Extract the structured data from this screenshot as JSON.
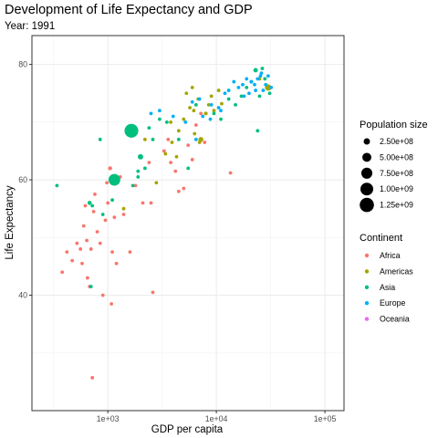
{
  "chart_data": {
    "type": "scatter",
    "title": "Development of Life Expectancy and GDP",
    "subtitle": "Year: 1991",
    "xlabel": "GDP per capita",
    "ylabel": "Life Expectancy",
    "x_scale": "log10",
    "xlim": [
      200,
      150000
    ],
    "ylim": [
      20,
      85
    ],
    "x_ticks": [
      {
        "value": 1000,
        "label": "1e+03"
      },
      {
        "value": 10000,
        "label": "1e+04"
      },
      {
        "value": 100000,
        "label": "1e+05"
      }
    ],
    "y_ticks": [
      {
        "value": 40,
        "label": "40"
      },
      {
        "value": 60,
        "label": "60"
      },
      {
        "value": 80,
        "label": "80"
      }
    ],
    "grid": true,
    "legend_position": "right",
    "size_legend": {
      "title": "Population size",
      "entries": [
        {
          "value": 250000000,
          "label": "2.50e+08"
        },
        {
          "value": 500000000,
          "label": "5.00e+08"
        },
        {
          "value": 750000000,
          "label": "7.50e+08"
        },
        {
          "value": 1000000000,
          "label": "1.00e+09"
        },
        {
          "value": 1250000000,
          "label": "1.25e+09"
        }
      ]
    },
    "color_legend": {
      "title": "Continent",
      "entries": [
        {
          "name": "Africa",
          "color": "#F8766D"
        },
        {
          "name": "Americas",
          "color": "#A3A500"
        },
        {
          "name": "Asia",
          "color": "#00BF7D"
        },
        {
          "name": "Europe",
          "color": "#00B0F6"
        },
        {
          "name": "Oceania",
          "color": "#E76BF3"
        }
      ]
    },
    "series": [
      {
        "name": "Africa",
        "color": "#F8766D",
        "points": [
          [
            380,
            44.0
          ],
          [
            420,
            47.5
          ],
          [
            470,
            46.0
          ],
          [
            520,
            49.0
          ],
          [
            560,
            48.0
          ],
          [
            580,
            45.5
          ],
          [
            600,
            52.0
          ],
          [
            620,
            55.5
          ],
          [
            640,
            49.5
          ],
          [
            650,
            43.0
          ],
          [
            680,
            41.5
          ],
          [
            700,
            48.0
          ],
          [
            720,
            25.7
          ],
          [
            740,
            54.5
          ],
          [
            760,
            57.5
          ],
          [
            800,
            51.0
          ],
          [
            850,
            49.0
          ],
          [
            900,
            40.0
          ],
          [
            950,
            53.0
          ],
          [
            980,
            59.5
          ],
          [
            1000,
            56.0
          ],
          [
            1050,
            62.0
          ],
          [
            1080,
            38.5
          ],
          [
            1100,
            47.5
          ],
          [
            1150,
            53.5
          ],
          [
            1200,
            45.5
          ],
          [
            1300,
            60.5
          ],
          [
            1400,
            54.0
          ],
          [
            1600,
            47.5
          ],
          [
            1800,
            59.0
          ],
          [
            2100,
            56.0
          ],
          [
            2600,
            40.5
          ],
          [
            3300,
            65.0
          ],
          [
            4200,
            61.5
          ],
          [
            5000,
            58.5
          ],
          [
            3800,
            63.0
          ],
          [
            5500,
            66.0
          ],
          [
            6500,
            69.5
          ],
          [
            7200,
            71.5
          ],
          [
            13500,
            61.2
          ],
          [
            7800,
            66.5
          ],
          [
            6000,
            63.5
          ],
          [
            3600,
            67.0
          ],
          [
            4500,
            58.0
          ],
          [
            2400,
            63.0
          ],
          [
            2500,
            56.0
          ]
        ],
        "pops": [
          9000000,
          13000000,
          6000000,
          10000000,
          8000000,
          5000000,
          4000000,
          12000000,
          7000000,
          9000000,
          3000000,
          6000000,
          7000000,
          5000000,
          8000000,
          11000000,
          4000000,
          5000000,
          6000000,
          9000000,
          3000000,
          99000000,
          6000000,
          5000000,
          8000000,
          4000000,
          27000000,
          7000000,
          50000000,
          5000000,
          3000000,
          4000000,
          36000000,
          14000000,
          2000000,
          57000000,
          3000000,
          12000000,
          25000000,
          1000000,
          2000000,
          3000000,
          4000000,
          2000000,
          3000000,
          3000000
        ]
      },
      {
        "name": "Americas",
        "color": "#A3A500",
        "points": [
          [
            1400,
            55.0
          ],
          [
            2800,
            59.5
          ],
          [
            3400,
            64.5
          ],
          [
            3900,
            66.5
          ],
          [
            4500,
            68.5
          ],
          [
            5000,
            70.5
          ],
          [
            5700,
            72.5
          ],
          [
            6000,
            76.0
          ],
          [
            6800,
            74.0
          ],
          [
            7200,
            67.0
          ],
          [
            8000,
            71.5
          ],
          [
            8500,
            73.0
          ],
          [
            9500,
            72.0
          ],
          [
            10500,
            75.5
          ],
          [
            6200,
            72.0
          ],
          [
            30000,
            76.0
          ],
          [
            25000,
            77.5
          ],
          [
            5300,
            75.0
          ],
          [
            7000,
            66.5
          ],
          [
            4300,
            64.0
          ],
          [
            6300,
            68.0
          ],
          [
            2200,
            67.0
          ],
          [
            9000,
            74.5
          ],
          [
            3800,
            70.0
          ],
          [
            11200,
            73.2
          ]
        ],
        "pops": [
          6000000,
          3500000,
          17000000,
          6000000,
          8000000,
          33000000,
          1000000,
          4000000,
          3000000,
          150000000,
          85000000,
          2000000,
          3000000,
          2500000,
          4000000,
          250000000,
          27000000,
          250000,
          1500000,
          9000000,
          13000000,
          7000000,
          3000000,
          5000000,
          1000000
        ]
      },
      {
        "name": "Asia",
        "color": "#00BF7D",
        "points": [
          [
            340,
            59.0
          ],
          [
            680,
            56.0
          ],
          [
            720,
            55.5
          ],
          [
            850,
            67.0
          ],
          [
            1150,
            60.0
          ],
          [
            1650,
            68.5
          ],
          [
            1900,
            60.5
          ],
          [
            2000,
            64.0
          ],
          [
            2200,
            62.0
          ],
          [
            2400,
            69.0
          ],
          [
            2600,
            67.0
          ],
          [
            3000,
            70.5
          ],
          [
            3500,
            70.0
          ],
          [
            4500,
            67.0
          ],
          [
            6500,
            73.0
          ],
          [
            9500,
            71.5
          ],
          [
            11000,
            70.5
          ],
          [
            13000,
            74.0
          ],
          [
            17000,
            74.5
          ],
          [
            19000,
            76.0
          ],
          [
            21000,
            77.0
          ],
          [
            23000,
            79.0
          ],
          [
            25000,
            74.5
          ],
          [
            26500,
            79.3
          ],
          [
            28000,
            77.5
          ],
          [
            24000,
            68.5
          ],
          [
            31000,
            75.0
          ],
          [
            1700,
            59.0
          ],
          [
            900,
            54.0
          ],
          [
            1100,
            56.5
          ],
          [
            700,
            41.5
          ],
          [
            1900,
            61.5
          ],
          [
            15000,
            73.0
          ],
          [
            5500,
            62.0
          ]
        ],
        "pops": [
          15000000,
          110000000,
          4000000,
          67000000,
          850000000,
          1170000000,
          55000000,
          180000000,
          62000000,
          25000000,
          18000000,
          3000000,
          21000000,
          12000000,
          43000000,
          5000000,
          3000000,
          2000000,
          17000000,
          3000000,
          4000000,
          124000000,
          2000000,
          6000000,
          3000000,
          1500000,
          2000000,
          4000000,
          10000000,
          40000000,
          13000000,
          4000000,
          2000000,
          15000000
        ]
      },
      {
        "name": "Europe",
        "color": "#00B0F6",
        "points": [
          [
            2500,
            71.5
          ],
          [
            3000,
            72.0
          ],
          [
            4000,
            71.0
          ],
          [
            5200,
            70.0
          ],
          [
            6000,
            73.5
          ],
          [
            7500,
            71.0
          ],
          [
            8800,
            70.5
          ],
          [
            9000,
            73.0
          ],
          [
            10500,
            72.5
          ],
          [
            12000,
            75.0
          ],
          [
            13000,
            75.5
          ],
          [
            14500,
            77.0
          ],
          [
            16000,
            76.0
          ],
          [
            17500,
            76.5
          ],
          [
            19000,
            77.5
          ],
          [
            20000,
            75.0
          ],
          [
            21000,
            77.0
          ],
          [
            22500,
            76.5
          ],
          [
            24000,
            77.5
          ],
          [
            25500,
            78.0
          ],
          [
            27000,
            75.5
          ],
          [
            28500,
            76.5
          ],
          [
            30000,
            78.0
          ],
          [
            32000,
            76.0
          ],
          [
            23000,
            75.5
          ],
          [
            18000,
            74.5
          ],
          [
            26000,
            78.5
          ],
          [
            6500,
            67.0
          ],
          [
            7000,
            74.0
          ],
          [
            11000,
            72.0
          ]
        ],
        "pops": [
          3000000,
          9000000,
          38000000,
          15000000,
          10000000,
          23000000,
          2000000,
          10000000,
          5000000,
          10000000,
          39000000,
          57000000,
          10000000,
          5000000,
          57000000,
          10000000,
          80000000,
          4000000,
          7000000,
          15000000,
          58000000,
          5000000,
          8500000,
          4000000,
          15000000,
          3000000,
          7000000,
          12000000,
          2000000,
          3000000
        ]
      },
      {
        "name": "Oceania",
        "color": "#E76BF3",
        "points": [],
        "pops": []
      }
    ]
  }
}
